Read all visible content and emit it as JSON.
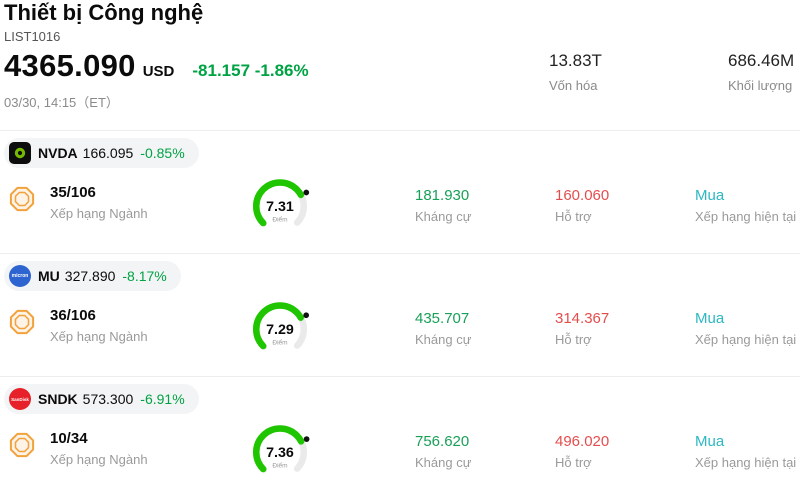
{
  "header": {
    "title": "Thiết bị Công nghệ",
    "list_id": "LIST1016",
    "price": "4365.090",
    "currency": "USD",
    "change": "-81.157 -1.86%",
    "datetime": "03/30, 14:15（ET）",
    "market_cap": {
      "value": "13.83T",
      "label": "Vốn hóa"
    },
    "volume": {
      "value": "686.46M",
      "label": "Khối lượng"
    }
  },
  "labels": {
    "industry_rank": "Xếp hạng Ngành",
    "score_unit": "Điểm",
    "resistance": "Kháng cự",
    "support": "Hỗ trợ",
    "current_rating": "Xếp hạng hiện tại"
  },
  "colors": {
    "change_green": "#00A344",
    "resistance_green": "#18A058",
    "support_red": "#E54D4D",
    "rating_teal": "#2CB8C4",
    "gauge_green": "#1FC600",
    "badge_orange": "#F2A23C"
  },
  "stocks": [
    {
      "ticker": "NVDA",
      "price": "166.095",
      "change": "-0.85%",
      "logo_text": "",
      "rank": "35/106",
      "score": 7.31,
      "resistance": "181.930",
      "support": "160.060",
      "rating": "Mua"
    },
    {
      "ticker": "MU",
      "price": "327.890",
      "change": "-8.17%",
      "logo_text": "micron",
      "rank": "36/106",
      "score": 7.29,
      "resistance": "435.707",
      "support": "314.367",
      "rating": "Mua"
    },
    {
      "ticker": "SNDK",
      "price": "573.300",
      "change": "-6.91%",
      "logo_text": "SanDisk",
      "rank": "10/34",
      "score": 7.36,
      "resistance": "756.620",
      "support": "496.020",
      "rating": "Mua"
    }
  ]
}
